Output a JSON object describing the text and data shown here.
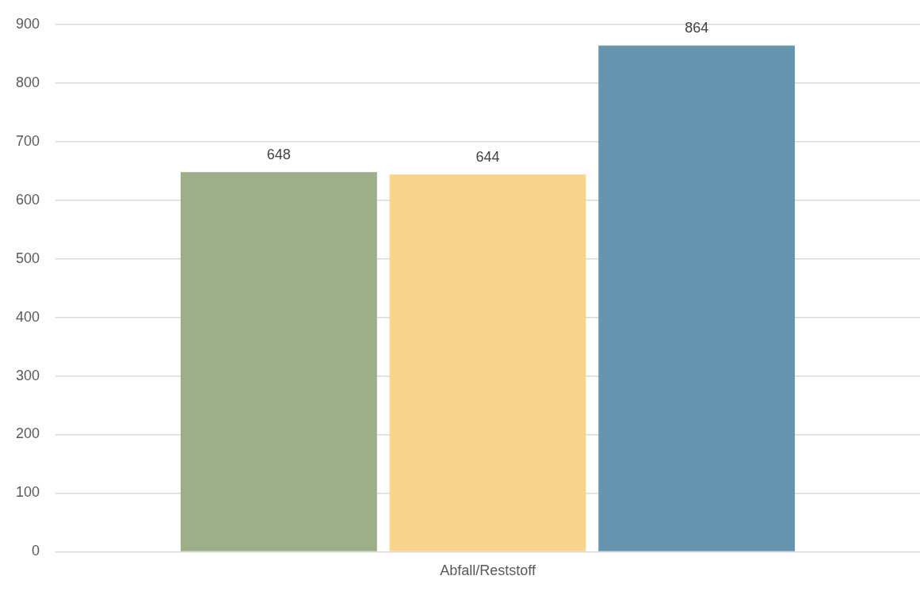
{
  "chart_data": {
    "type": "bar",
    "categories": [
      "Abfall/Reststoff"
    ],
    "series": [
      {
        "color": "#9daf88",
        "values": [
          648
        ]
      },
      {
        "color": "#f8d58c",
        "values": [
          644
        ]
      },
      {
        "color": "#6795b0",
        "values": [
          864
        ]
      }
    ],
    "ylim": [
      0,
      900
    ],
    "yticks": [
      0,
      100,
      200,
      300,
      400,
      500,
      600,
      700,
      800,
      900
    ],
    "grid": "y",
    "data_labels": true,
    "legend": false
  }
}
